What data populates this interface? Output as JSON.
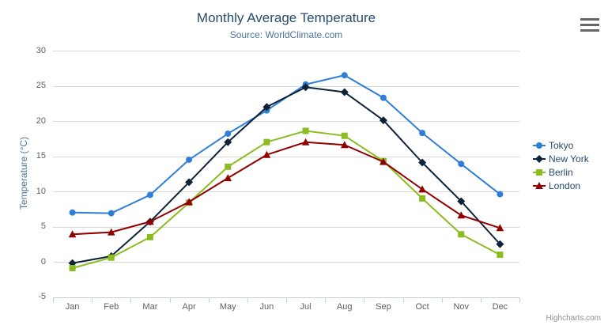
{
  "chart_data": {
    "type": "line",
    "title": "Monthly Average Temperature",
    "subtitle": "Source: WorldClimate.com",
    "xlabel": "",
    "ylabel": "Temperature (°C)",
    "categories": [
      "Jan",
      "Feb",
      "Mar",
      "Apr",
      "May",
      "Jun",
      "Jul",
      "Aug",
      "Sep",
      "Oct",
      "Nov",
      "Dec"
    ],
    "yticks": [
      30,
      25,
      20,
      15,
      10,
      5,
      0,
      -5
    ],
    "ylim": [
      -5,
      30
    ],
    "grid": true,
    "legend_position": "right",
    "series": [
      {
        "name": "Tokyo",
        "color": "#2f7ed8",
        "marker": "circle",
        "values": [
          7.0,
          6.9,
          9.5,
          14.5,
          18.2,
          21.5,
          25.2,
          26.5,
          23.3,
          18.3,
          13.9,
          9.6
        ]
      },
      {
        "name": "New York",
        "color": "#0d233a",
        "marker": "diamond",
        "values": [
          -0.2,
          0.8,
          5.7,
          11.3,
          17.0,
          22.0,
          24.8,
          24.1,
          20.1,
          14.1,
          8.6,
          2.5
        ]
      },
      {
        "name": "Berlin",
        "color": "#8bbc21",
        "marker": "square",
        "values": [
          -0.9,
          0.6,
          3.5,
          8.4,
          13.5,
          17.0,
          18.6,
          17.9,
          14.3,
          9.0,
          3.9,
          1.0
        ]
      },
      {
        "name": "London",
        "color": "#910000",
        "marker": "triangle",
        "values": [
          3.9,
          4.2,
          5.7,
          8.5,
          11.9,
          15.2,
          17.0,
          16.6,
          14.2,
          10.3,
          6.6,
          4.8
        ]
      }
    ]
  },
  "credits": {
    "label": "Highcharts.com"
  },
  "icons": {
    "context_menu": "hamburger-menu-icon"
  },
  "colors": {
    "title": "#274b6d",
    "subtitle": "#4d759e",
    "axis_title": "#4d759e",
    "axis_label": "#606060",
    "grid_line": "#d8d8d8",
    "axis_line": "#c0d0e0",
    "legend_text": "#274b6d",
    "credits": "#909090",
    "menu_icon": "#666666"
  }
}
